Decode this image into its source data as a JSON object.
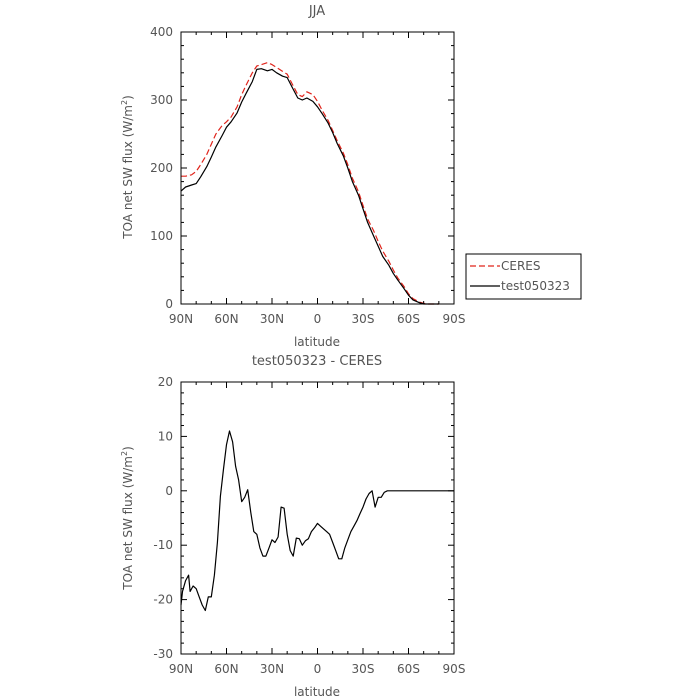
{
  "chart_data": [
    {
      "type": "line",
      "title": "JJA",
      "xlabel": "latitude",
      "ylabel_main": "TOA net SW flux (W/m",
      "ylabel_sup": "2",
      "ylabel_end": ")",
      "xlim": [
        90,
        -90
      ],
      "ylim": [
        0,
        400
      ],
      "x_ticks": [
        90,
        60,
        30,
        0,
        -30,
        -60,
        -90
      ],
      "x_tick_labels": [
        "90N",
        "60N",
        "30N",
        "0",
        "30S",
        "60S",
        "90S"
      ],
      "y_ticks": [
        0,
        100,
        200,
        300,
        400
      ],
      "y_tick_labels": [
        "0",
        "100",
        "200",
        "300",
        "400"
      ],
      "legend_position": "right",
      "series": [
        {
          "name": "CERES",
          "color": "#e0241b",
          "dash": "dashed",
          "x": [
            90,
            87,
            83,
            80,
            77,
            73,
            70,
            67,
            63,
            60,
            57,
            53,
            50,
            47,
            43,
            40,
            37,
            33,
            30,
            27,
            23,
            20,
            17,
            13,
            10,
            7,
            3,
            0,
            -3,
            -7,
            -10,
            -13,
            -17,
            -20,
            -23,
            -27,
            -30,
            -33,
            -37,
            -40,
            -43,
            -47,
            -50,
            -53,
            -57,
            -60,
            -63,
            -67,
            -70,
            -73,
            -77,
            -80
          ],
          "y": [
            188,
            188,
            190,
            195,
            205,
            220,
            235,
            250,
            262,
            268,
            275,
            290,
            308,
            322,
            340,
            350,
            352,
            355,
            352,
            348,
            342,
            338,
            325,
            308,
            305,
            312,
            308,
            298,
            285,
            270,
            255,
            240,
            222,
            205,
            185,
            165,
            145,
            125,
            108,
            92,
            78,
            63,
            50,
            38,
            26,
            15,
            8,
            3,
            1,
            0,
            0,
            0
          ]
        },
        {
          "name": "test050323",
          "color": "#000000",
          "dash": "solid",
          "x": [
            90,
            87,
            83,
            80,
            77,
            73,
            70,
            67,
            63,
            60,
            57,
            53,
            50,
            47,
            43,
            40,
            37,
            33,
            30,
            27,
            23,
            20,
            17,
            13,
            10,
            7,
            3,
            0,
            -3,
            -7,
            -10,
            -13,
            -17,
            -20,
            -23,
            -27,
            -30,
            -33,
            -37,
            -40,
            -43,
            -47,
            -50,
            -53,
            -57,
            -60,
            -63,
            -67,
            -70,
            -73,
            -77,
            -80
          ],
          "y": [
            166,
            172,
            175,
            177,
            187,
            202,
            216,
            231,
            247,
            260,
            268,
            281,
            297,
            310,
            327,
            345,
            346,
            343,
            345,
            340,
            335,
            333,
            320,
            303,
            300,
            303,
            298,
            290,
            280,
            266,
            252,
            236,
            218,
            200,
            180,
            160,
            140,
            120,
            100,
            85,
            70,
            57,
            45,
            35,
            23,
            13,
            6,
            2,
            0,
            0,
            0,
            0
          ]
        }
      ]
    },
    {
      "type": "line",
      "title": "test050323 - CERES",
      "xlabel": "latitude",
      "ylabel_main": "TOA net SW flux (W/m",
      "ylabel_sup": "2",
      "ylabel_end": ")",
      "xlim": [
        90,
        -90
      ],
      "ylim": [
        -30,
        20
      ],
      "x_ticks": [
        90,
        60,
        30,
        0,
        -30,
        -60,
        -90
      ],
      "x_tick_labels": [
        "90N",
        "60N",
        "30N",
        "0",
        "30S",
        "60S",
        "90S"
      ],
      "y_ticks": [
        -30,
        -20,
        -10,
        0,
        10,
        20
      ],
      "y_tick_labels": [
        "-30",
        "-20",
        "-10",
        "0",
        "10",
        "20"
      ],
      "series": [
        {
          "color": "#000000",
          "dash": "solid",
          "x": [
            90,
            89,
            87,
            85,
            84,
            82,
            80,
            78,
            76,
            74,
            72,
            70,
            68,
            66,
            64,
            62,
            60,
            58,
            56,
            54,
            52,
            50,
            48,
            46,
            44,
            42,
            40,
            38,
            36,
            34,
            32,
            30,
            28,
            26,
            24,
            22,
            20,
            18,
            16,
            14,
            12,
            10,
            8,
            6,
            4,
            2,
            0,
            -2,
            -4,
            -6,
            -8,
            -10,
            -12,
            -14,
            -16,
            -18,
            -20,
            -22,
            -24,
            -26,
            -28,
            -30,
            -32,
            -34,
            -36,
            -38,
            -40,
            -42,
            -44,
            -46,
            -48,
            -50,
            -52,
            -54,
            -56,
            -58,
            -60,
            -62,
            -64,
            -66,
            -68,
            -70,
            -72,
            -74,
            -76,
            -78,
            -80,
            -85,
            -90
          ],
          "y": [
            -21,
            -18.5,
            -16.5,
            -15.5,
            -18.5,
            -17.5,
            -18,
            -19.5,
            -21,
            -22,
            -19.5,
            -19.5,
            -15.5,
            -9.5,
            -1,
            4,
            8.5,
            11,
            9,
            4.5,
            2,
            -2,
            -1.2,
            0.2,
            -4,
            -7.5,
            -8,
            -10.5,
            -12,
            -12,
            -10.5,
            -9,
            -9.5,
            -8.5,
            -3,
            -3.2,
            -8,
            -11,
            -12,
            -8.7,
            -8.8,
            -10,
            -9.2,
            -8.8,
            -7.5,
            -6.8,
            -6,
            -6.5,
            -7,
            -7.5,
            -8,
            -9.5,
            -11,
            -12.5,
            -12.5,
            -10.5,
            -9,
            -7.5,
            -6.5,
            -5.5,
            -4.2,
            -3,
            -1.5,
            -0.5,
            0,
            -3,
            -1.2,
            -1.2,
            -0.3,
            0,
            0,
            0,
            0,
            0,
            0,
            0,
            0,
            0,
            0,
            0,
            0,
            0,
            0,
            0,
            0,
            0,
            0,
            0,
            0
          ]
        }
      ]
    }
  ]
}
